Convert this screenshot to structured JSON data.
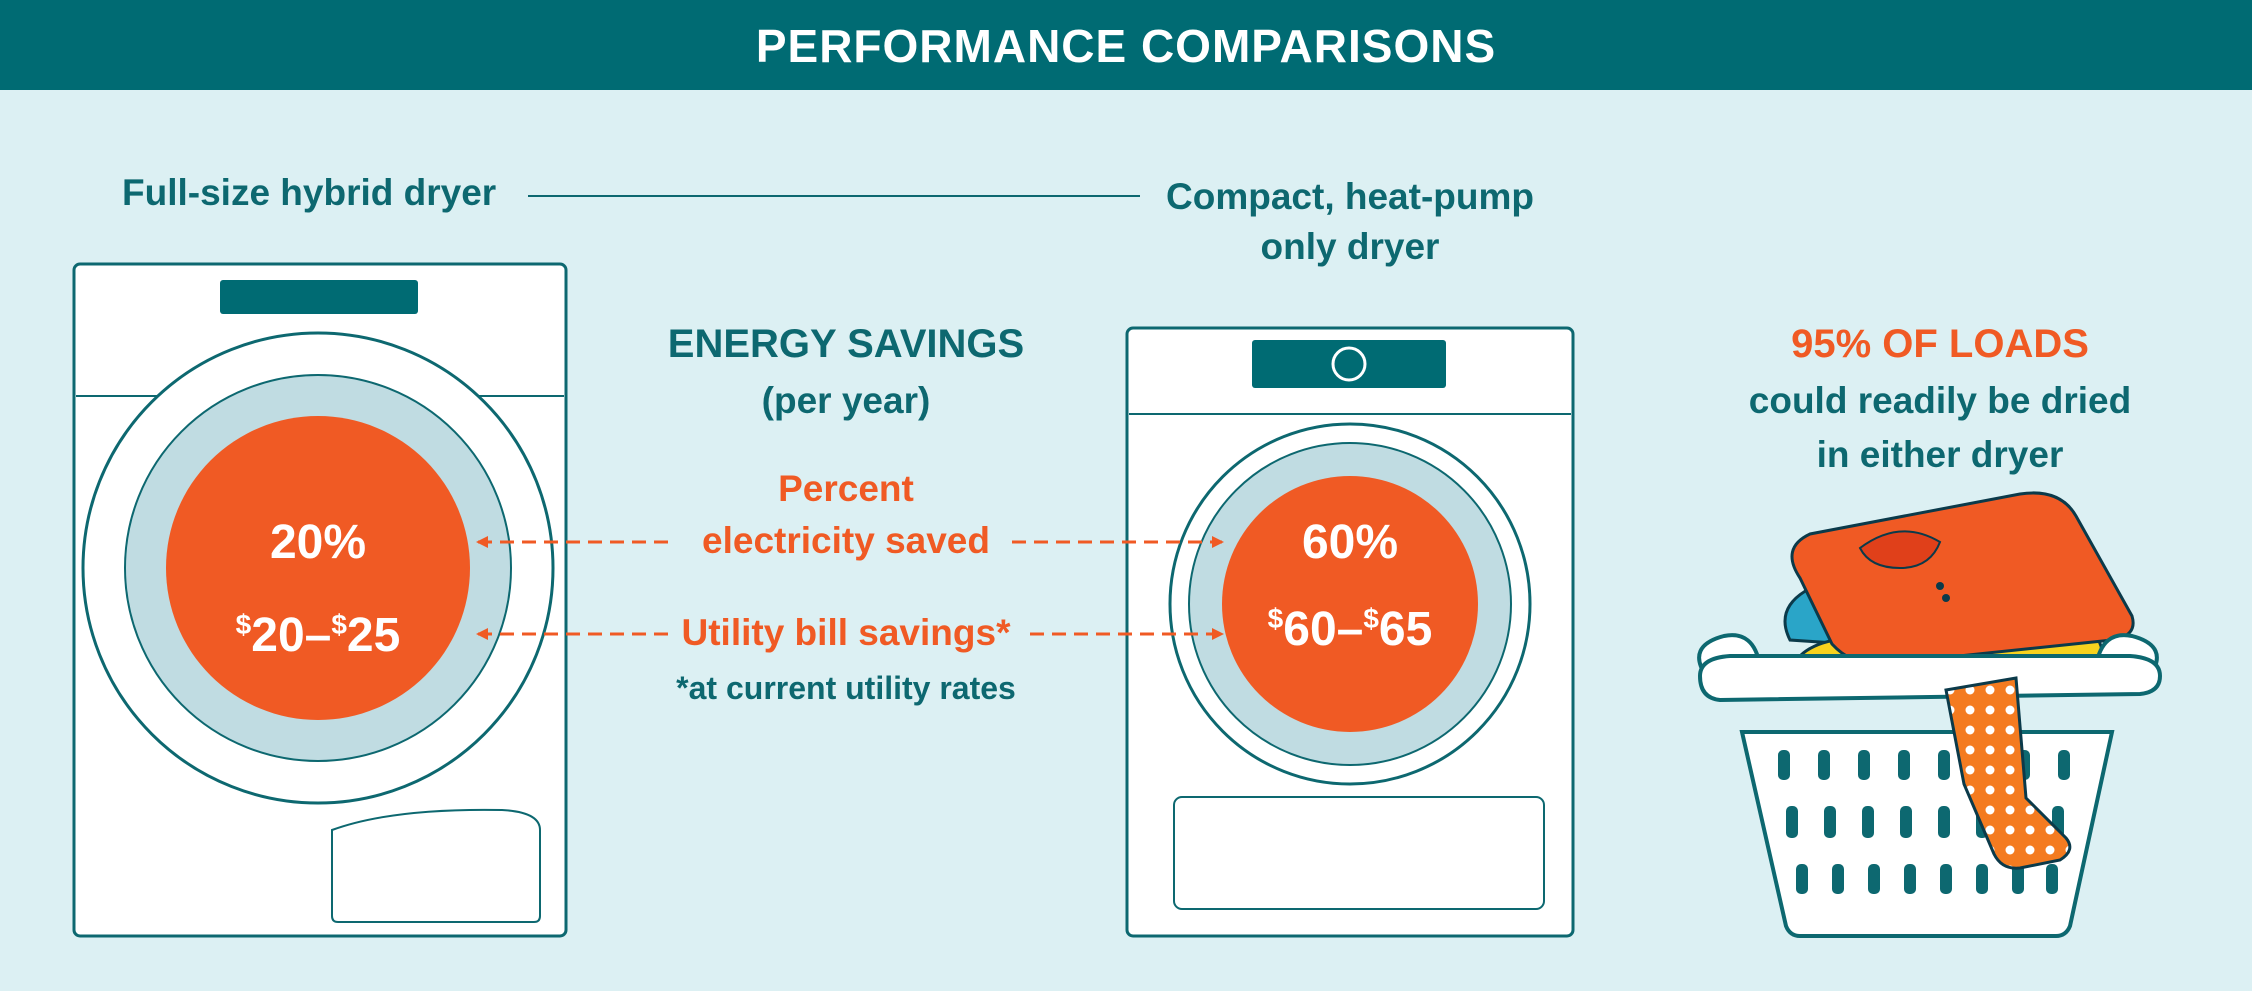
{
  "banner": {
    "title": "PERFORMANCE COMPARISONS"
  },
  "left_dryer": {
    "label": "Full-size hybrid dryer",
    "percent": "20%",
    "savings_from": "20",
    "savings_to": "25"
  },
  "right_dryer": {
    "label_line1": "Compact, heat-pump",
    "label_line2": "only dryer",
    "percent": "60%",
    "savings_from": "60",
    "savings_to": "65"
  },
  "energy": {
    "title": "ENERGY SAVINGS",
    "subtitle": "(per year)",
    "electricity_line1": "Percent",
    "electricity_line2": "electricity saved",
    "bill_label": "Utility bill savings*",
    "footnote": "*at current utility rates"
  },
  "loads": {
    "headline": "95% OF LOADS",
    "line1": "could readily be dried",
    "line2": "in either dryer"
  },
  "currency_symbol": "$",
  "range_separator": "–",
  "colors": {
    "teal": "#006b73",
    "orange": "#f05a24",
    "background": "#dcf0f3",
    "drum_ring": "#c0dce2"
  }
}
